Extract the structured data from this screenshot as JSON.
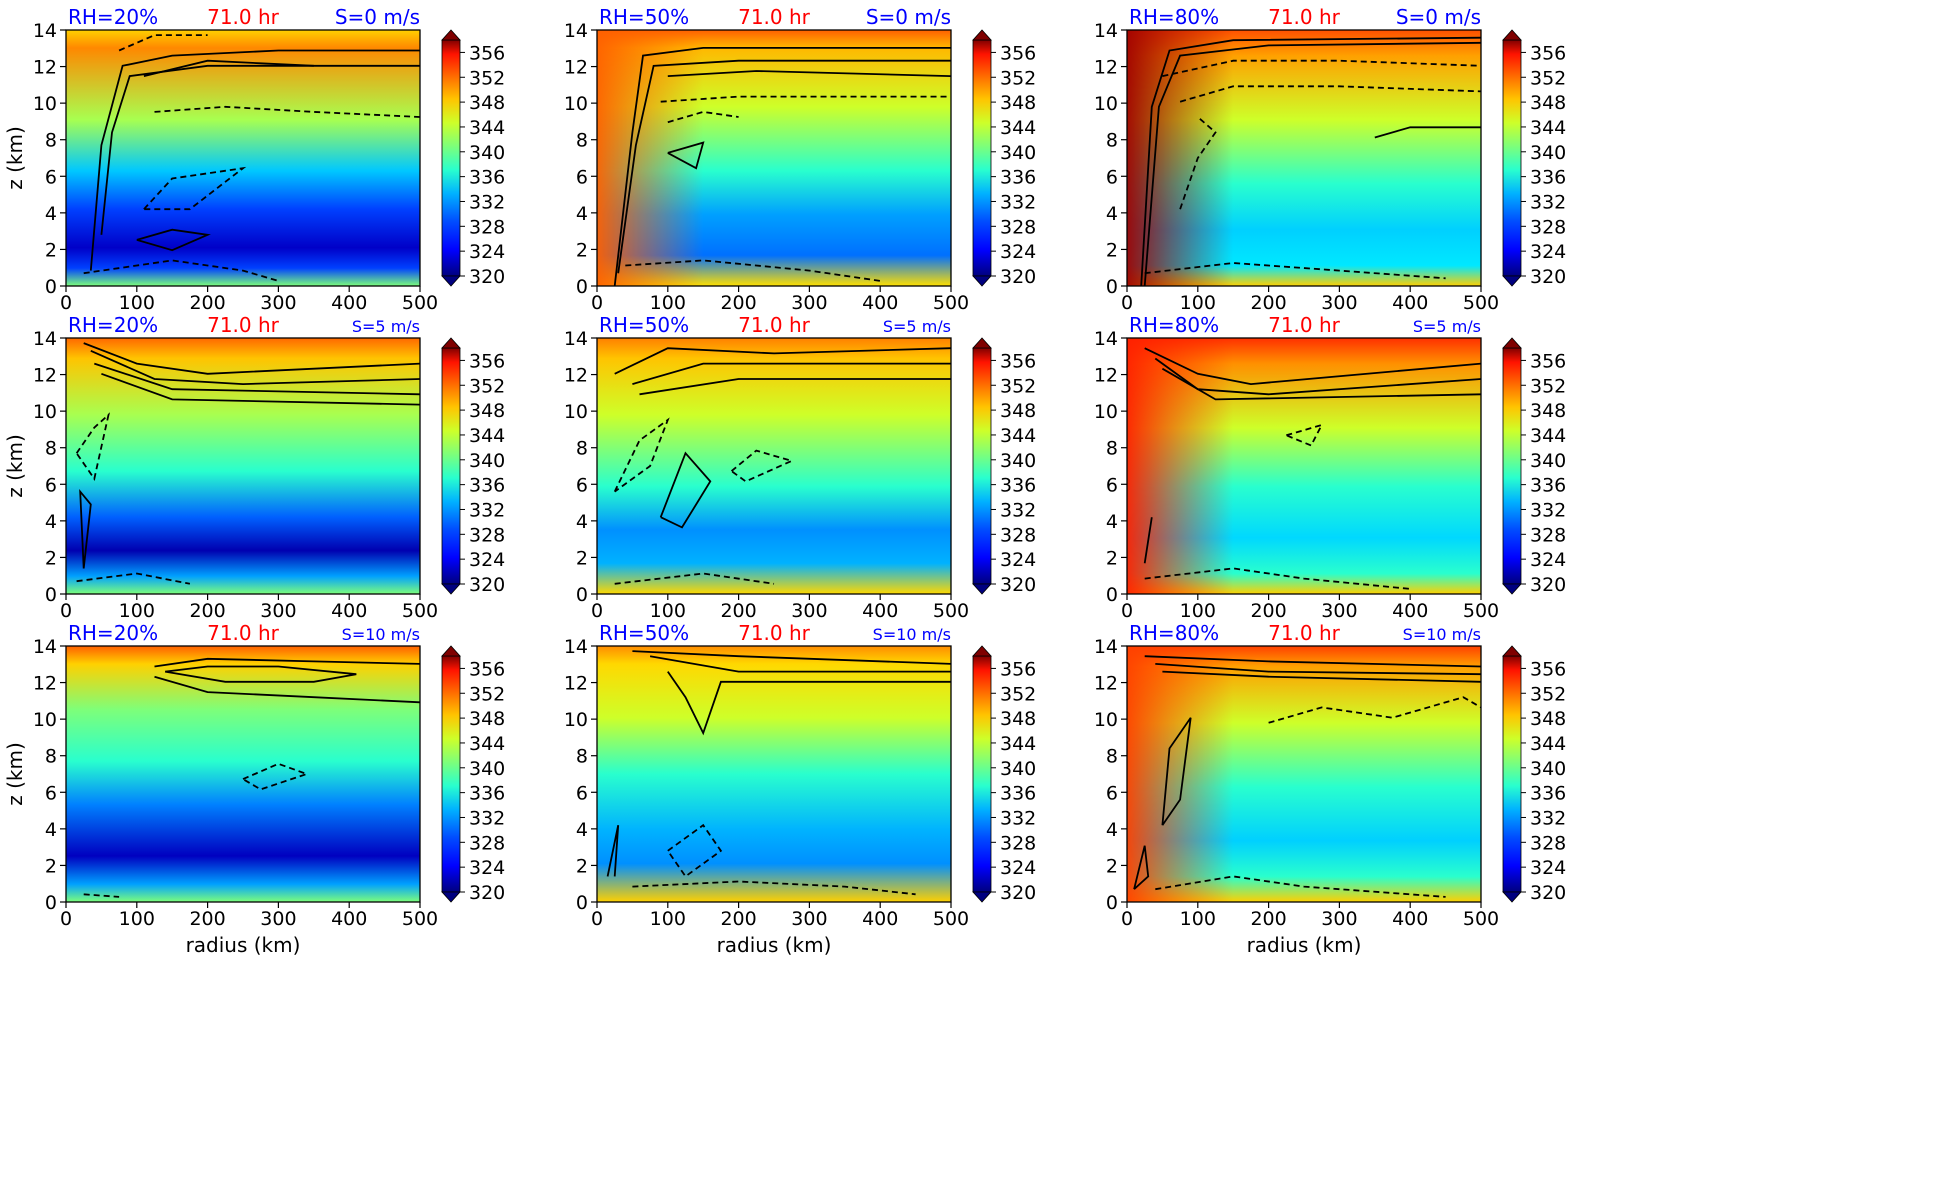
{
  "figure": {
    "time_label": "71.0 hr",
    "xlabel": "radius (km)",
    "ylabel": "z (km)"
  },
  "colors": {
    "rh_label": "#0000ff",
    "time_label": "#ff0000",
    "shear_label": "#0000ff",
    "contour": "#000000"
  },
  "chart_data": [
    {
      "type": "heatmap",
      "panel": "RH=20%, S=0 m/s",
      "rh_label": "RH=20%",
      "time_label": "71.0 hr",
      "shear_label": "S=0 m/s",
      "xlabel": "",
      "ylabel": "z (km)",
      "xlim": [
        0,
        500
      ],
      "ylim": [
        0,
        14
      ],
      "xticks": [
        0,
        100,
        200,
        300,
        400,
        500
      ],
      "yticks": [
        0,
        2,
        4,
        6,
        8,
        10,
        12,
        14
      ],
      "colorbar": {
        "ticks": [
          320,
          324,
          328,
          332,
          336,
          340,
          344,
          348,
          352,
          356
        ],
        "range": [
          320,
          358
        ],
        "extend": "both"
      }
    },
    {
      "type": "heatmap",
      "panel": "RH=50%, S=0 m/s",
      "rh_label": "RH=50%",
      "time_label": "71.0 hr",
      "shear_label": "S=0 m/s",
      "xlabel": "",
      "ylabel": "",
      "xlim": [
        0,
        500
      ],
      "ylim": [
        0,
        14
      ],
      "xticks": [
        0,
        100,
        200,
        300,
        400,
        500
      ],
      "yticks": [
        0,
        2,
        4,
        6,
        8,
        10,
        12,
        14
      ],
      "colorbar": {
        "ticks": [
          320,
          324,
          328,
          332,
          336,
          340,
          344,
          348,
          352,
          356
        ],
        "range": [
          320,
          358
        ],
        "extend": "both"
      }
    },
    {
      "type": "heatmap",
      "panel": "RH=80%, S=0 m/s",
      "rh_label": "RH=80%",
      "time_label": "71.0 hr",
      "shear_label": "S=0 m/s",
      "xlabel": "",
      "ylabel": "",
      "xlim": [
        0,
        500
      ],
      "ylim": [
        0,
        14
      ],
      "xticks": [
        0,
        100,
        200,
        300,
        400,
        500
      ],
      "yticks": [
        0,
        2,
        4,
        6,
        8,
        10,
        12,
        14
      ],
      "colorbar": {
        "ticks": [
          320,
          324,
          328,
          332,
          336,
          340,
          344,
          348,
          352,
          356
        ],
        "range": [
          320,
          358
        ],
        "extend": "both"
      }
    },
    {
      "type": "heatmap",
      "panel": "RH=20%, S=5 m/s",
      "rh_label": "RH=20%",
      "time_label": "71.0 hr",
      "shear_label": "S=5 m/s",
      "xlabel": "",
      "ylabel": "z (km)",
      "xlim": [
        0,
        500
      ],
      "ylim": [
        0,
        14
      ],
      "xticks": [
        0,
        100,
        200,
        300,
        400,
        500
      ],
      "yticks": [
        0,
        2,
        4,
        6,
        8,
        10,
        12,
        14
      ],
      "colorbar": {
        "ticks": [
          320,
          324,
          328,
          332,
          336,
          340,
          344,
          348,
          352,
          356
        ],
        "range": [
          320,
          358
        ],
        "extend": "both"
      }
    },
    {
      "type": "heatmap",
      "panel": "RH=50%, S=5 m/s",
      "rh_label": "RH=50%",
      "time_label": "71.0 hr",
      "shear_label": "S=5 m/s",
      "xlabel": "",
      "ylabel": "",
      "xlim": [
        0,
        500
      ],
      "ylim": [
        0,
        14
      ],
      "xticks": [
        0,
        100,
        200,
        300,
        400,
        500
      ],
      "yticks": [
        0,
        2,
        4,
        6,
        8,
        10,
        12,
        14
      ],
      "colorbar": {
        "ticks": [
          320,
          324,
          328,
          332,
          336,
          340,
          344,
          348,
          352,
          356
        ],
        "range": [
          320,
          358
        ],
        "extend": "both"
      }
    },
    {
      "type": "heatmap",
      "panel": "RH=80%, S=5 m/s",
      "rh_label": "RH=80%",
      "time_label": "71.0 hr",
      "shear_label": "S=5 m/s",
      "xlabel": "",
      "ylabel": "",
      "xlim": [
        0,
        500
      ],
      "ylim": [
        0,
        14
      ],
      "xticks": [
        0,
        100,
        200,
        300,
        400,
        500
      ],
      "yticks": [
        0,
        2,
        4,
        6,
        8,
        10,
        12,
        14
      ],
      "colorbar": {
        "ticks": [
          320,
          324,
          328,
          332,
          336,
          340,
          344,
          348,
          352,
          356
        ],
        "range": [
          320,
          358
        ],
        "extend": "both"
      }
    },
    {
      "type": "heatmap",
      "panel": "RH=20%, S=10 m/s",
      "rh_label": "RH=20%",
      "time_label": "71.0 hr",
      "shear_label": "S=10 m/s",
      "xlabel": "radius (km)",
      "ylabel": "z (km)",
      "xlim": [
        0,
        500
      ],
      "ylim": [
        0,
        14
      ],
      "xticks": [
        0,
        100,
        200,
        300,
        400,
        500
      ],
      "yticks": [
        0,
        2,
        4,
        6,
        8,
        10,
        12,
        14
      ],
      "colorbar": {
        "ticks": [
          320,
          324,
          328,
          332,
          336,
          340,
          344,
          348,
          352,
          356
        ],
        "range": [
          320,
          358
        ],
        "extend": "both"
      }
    },
    {
      "type": "heatmap",
      "panel": "RH=50%, S=10 m/s",
      "rh_label": "RH=50%",
      "time_label": "71.0 hr",
      "shear_label": "S=10 m/s",
      "xlabel": "radius (km)",
      "ylabel": "",
      "xlim": [
        0,
        500
      ],
      "ylim": [
        0,
        14
      ],
      "xticks": [
        0,
        100,
        200,
        300,
        400,
        500
      ],
      "yticks": [
        0,
        2,
        4,
        6,
        8,
        10,
        12,
        14
      ],
      "colorbar": {
        "ticks": [
          320,
          324,
          328,
          332,
          336,
          340,
          344,
          348,
          352,
          356
        ],
        "range": [
          320,
          358
        ],
        "extend": "both"
      }
    },
    {
      "type": "heatmap",
      "panel": "RH=80%, S=10 m/s",
      "rh_label": "RH=80%",
      "time_label": "71.0 hr",
      "shear_label": "S=10 m/s",
      "xlabel": "radius (km)",
      "ylabel": "",
      "xlim": [
        0,
        500
      ],
      "ylim": [
        0,
        14
      ],
      "xticks": [
        0,
        100,
        200,
        300,
        400,
        500
      ],
      "yticks": [
        0,
        2,
        4,
        6,
        8,
        10,
        12,
        14
      ],
      "colorbar": {
        "ticks": [
          320,
          324,
          328,
          332,
          336,
          340,
          344,
          348,
          352,
          356
        ],
        "range": [
          320,
          358
        ],
        "extend": "both"
      }
    }
  ]
}
